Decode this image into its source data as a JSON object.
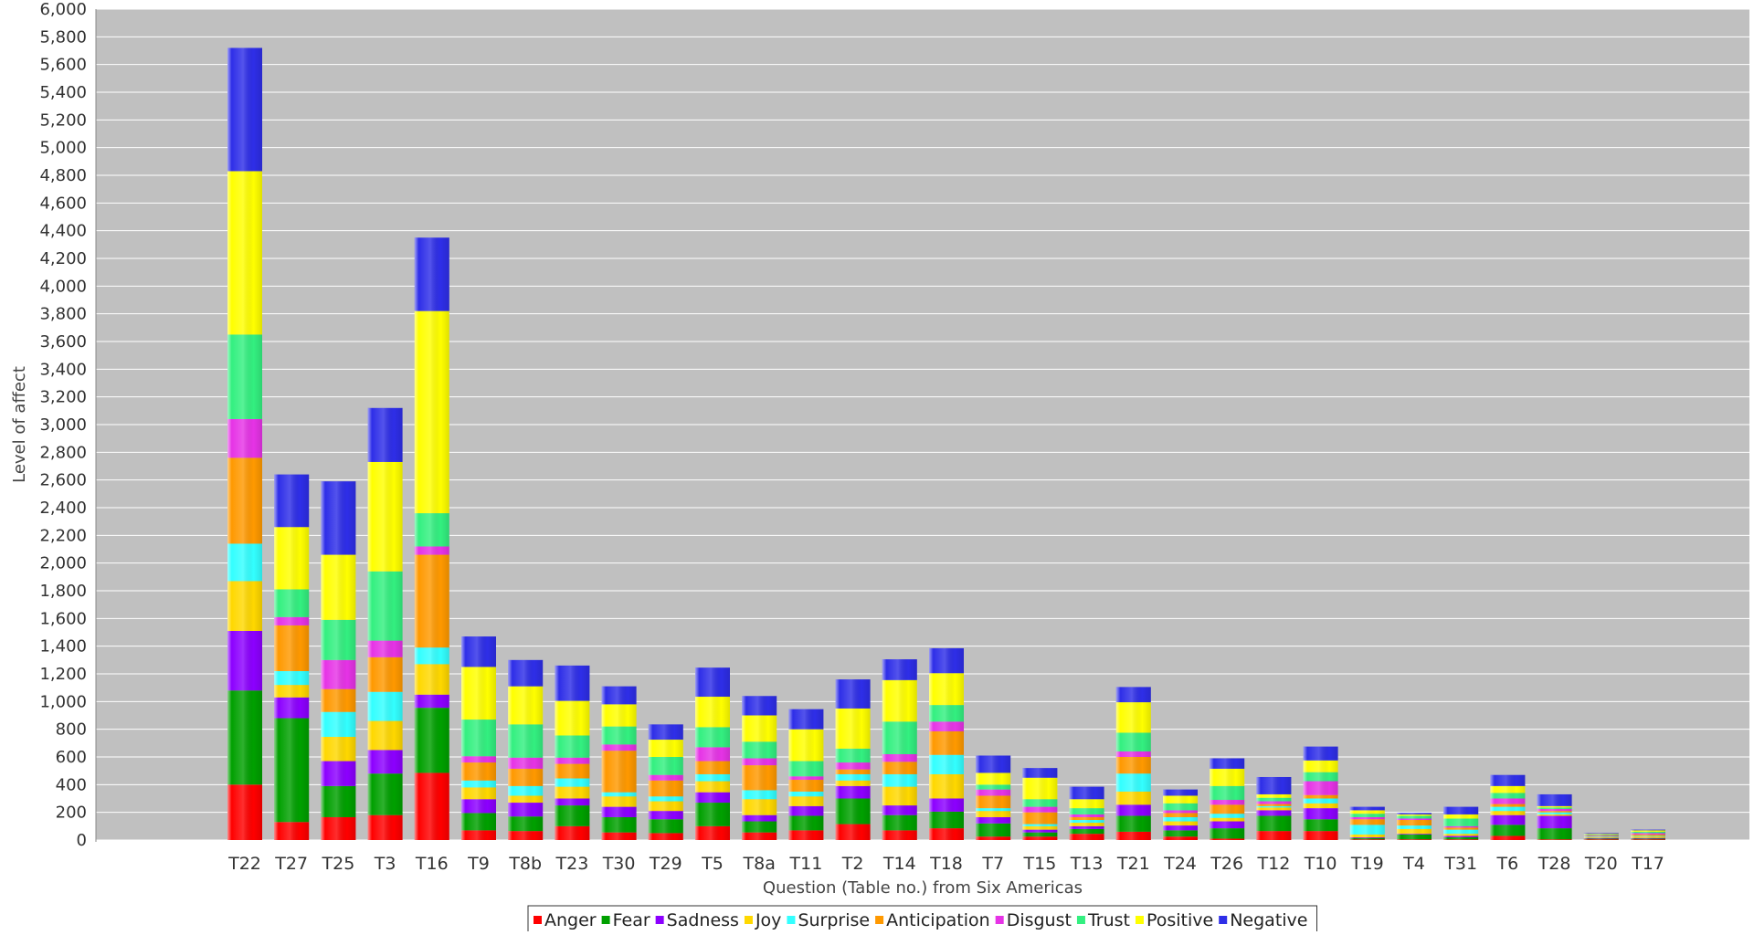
{
  "chart_data": {
    "type": "bar",
    "stacked": true,
    "title": "",
    "xlabel": "Question (Table no.) from Six Americas",
    "ylabel": "Level of affect",
    "ylim": [
      0,
      6000
    ],
    "ytick_step": 200,
    "grid": true,
    "legend_placement": "bottom-center",
    "plot_background": "#C0C0C0",
    "categories": [
      "T22",
      "T27",
      "T25",
      "T3",
      "T16",
      "T9",
      "T8b",
      "T23",
      "T30",
      "T29",
      "T5",
      "T8a",
      "T11",
      "T2",
      "T14",
      "T18",
      "T7",
      "T15",
      "T13",
      "T21",
      "T24",
      "T26",
      "T12",
      "T10",
      "T19",
      "T4",
      "T31",
      "T6",
      "T28",
      "T20",
      "T17"
    ],
    "series": [
      {
        "name": "Anger",
        "color": "#FF0000",
        "values": [
          400,
          130,
          165,
          180,
          485,
          70,
          65,
          100,
          55,
          50,
          100,
          55,
          70,
          115,
          70,
          85,
          25,
          25,
          45,
          60,
          25,
          10,
          65,
          65,
          5,
          5,
          5,
          30,
          5,
          5,
          5
        ]
      },
      {
        "name": "Fear",
        "color": "#00A000",
        "values": [
          680,
          750,
          225,
          300,
          470,
          125,
          105,
          150,
          110,
          100,
          170,
          80,
          105,
          185,
          110,
          120,
          95,
          30,
          35,
          115,
          45,
          75,
          110,
          85,
          10,
          35,
          15,
          80,
          80,
          5,
          5
        ]
      },
      {
        "name": "Sadness",
        "color": "#8C00FF",
        "values": [
          430,
          150,
          180,
          170,
          95,
          100,
          100,
          50,
          75,
          60,
          75,
          45,
          70,
          90,
          70,
          95,
          45,
          20,
          20,
          80,
          35,
          50,
          40,
          80,
          5,
          5,
          10,
          70,
          90,
          5,
          5
        ]
      },
      {
        "name": "Joy",
        "color": "#FFD800",
        "values": [
          360,
          90,
          175,
          210,
          220,
          85,
          50,
          85,
          75,
          70,
          80,
          115,
          70,
          40,
          135,
          175,
          45,
          25,
          25,
          95,
          30,
          25,
          20,
          35,
          20,
          35,
          15,
          30,
          10,
          5,
          10
        ]
      },
      {
        "name": "Surprise",
        "color": "#33FFFF",
        "values": [
          270,
          100,
          180,
          210,
          120,
          50,
          70,
          60,
          30,
          35,
          50,
          65,
          35,
          45,
          90,
          140,
          20,
          15,
          20,
          130,
          30,
          30,
          10,
          35,
          70,
          25,
          30,
          30,
          15,
          5,
          5
        ]
      },
      {
        "name": "Anticipation",
        "color": "#FF9900",
        "values": [
          620,
          330,
          165,
          250,
          670,
          130,
          125,
          105,
          300,
          115,
          95,
          180,
          85,
          35,
          90,
          170,
          90,
          85,
          20,
          120,
          30,
          65,
          15,
          25,
          40,
          40,
          15,
          20,
          10,
          5,
          10
        ]
      },
      {
        "name": "Disgust",
        "color": "#E633E6",
        "values": [
          280,
          60,
          210,
          120,
          60,
          45,
          80,
          45,
          45,
          40,
          100,
          50,
          25,
          50,
          55,
          70,
          45,
          40,
          20,
          40,
          20,
          35,
          20,
          100,
          15,
          10,
          10,
          40,
          15,
          5,
          10
        ]
      },
      {
        "name": "Trust",
        "color": "#33F080",
        "values": [
          610,
          200,
          290,
          500,
          240,
          265,
          240,
          160,
          130,
          130,
          145,
          120,
          110,
          100,
          235,
          120,
          35,
          55,
          45,
          135,
          50,
          100,
          25,
          65,
          25,
          20,
          55,
          40,
          10,
          5,
          10
        ]
      },
      {
        "name": "Positive",
        "color": "#FFFF00",
        "values": [
          1180,
          450,
          470,
          790,
          1460,
          380,
          275,
          250,
          160,
          125,
          220,
          190,
          230,
          290,
          300,
          230,
          85,
          155,
          65,
          220,
          55,
          125,
          25,
          85,
          25,
          10,
          30,
          50,
          10,
          5,
          10
        ]
      },
      {
        "name": "Negative",
        "color": "#2E2EE8",
        "values": [
          890,
          380,
          530,
          390,
          530,
          220,
          190,
          255,
          130,
          110,
          210,
          140,
          145,
          210,
          150,
          180,
          125,
          70,
          90,
          110,
          45,
          75,
          125,
          100,
          25,
          10,
          55,
          80,
          85,
          5,
          5
        ]
      }
    ]
  }
}
